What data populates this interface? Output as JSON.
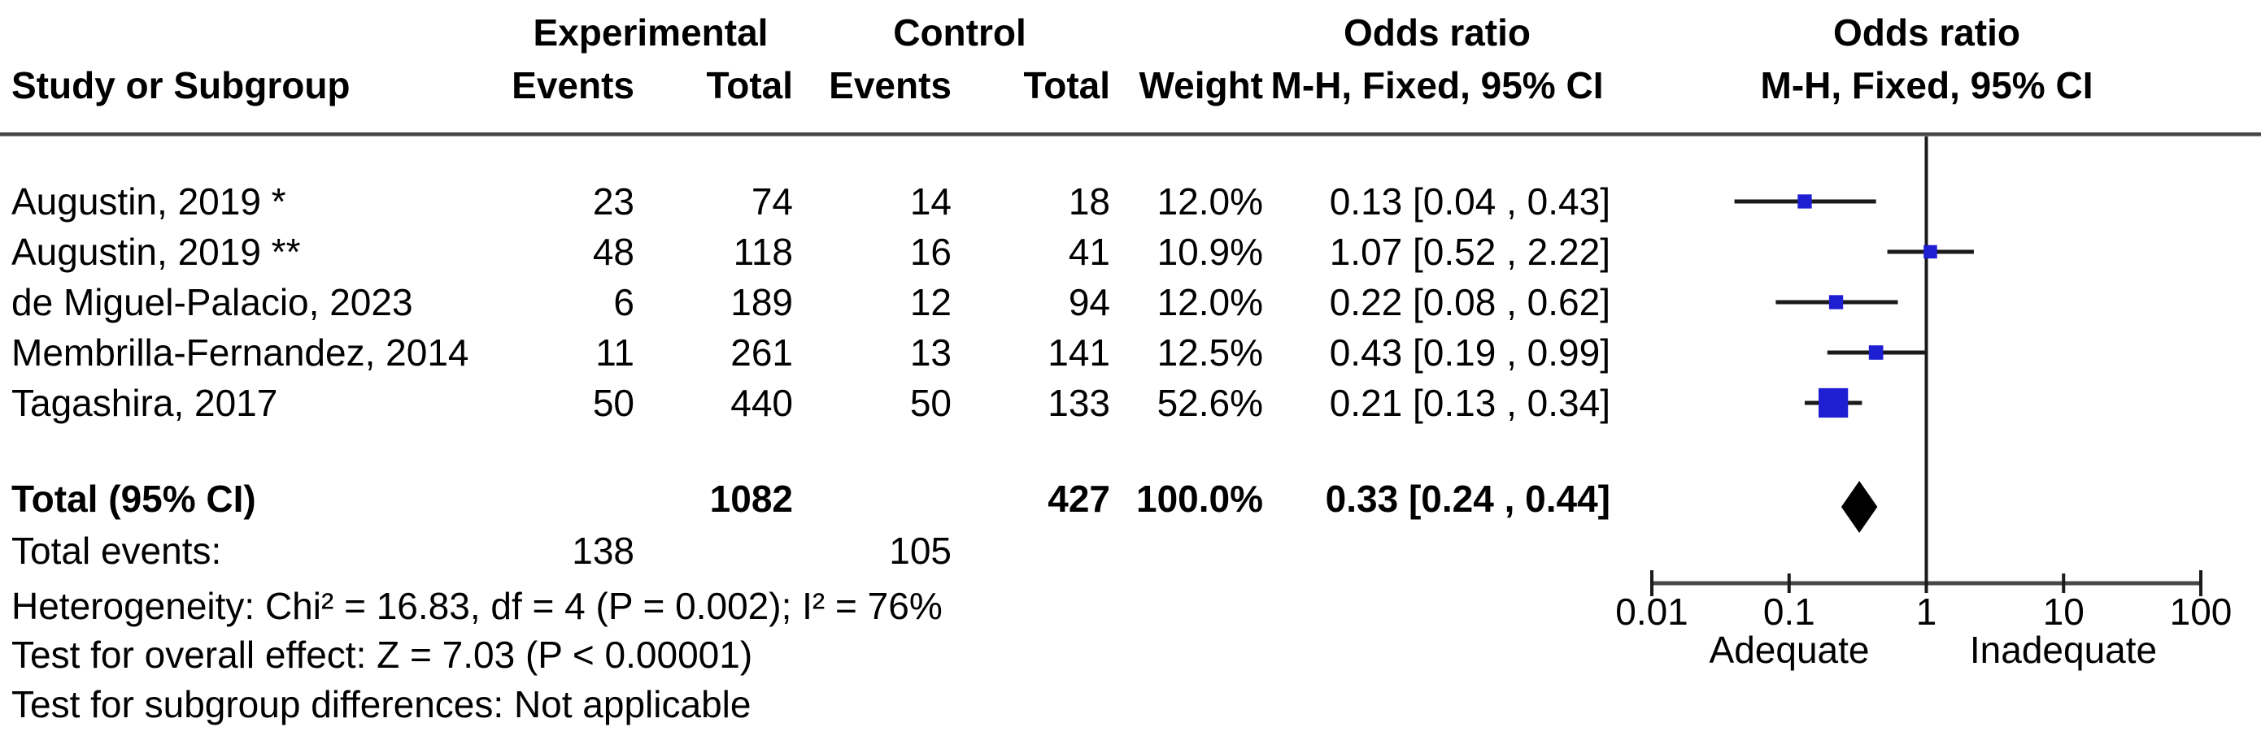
{
  "headers": {
    "group_experimental": "Experimental",
    "group_control": "Control",
    "or_col_title": "Odds ratio",
    "or_col_sub": "M-H, Fixed, 95% CI",
    "plot_title": "Odds ratio",
    "plot_sub": "M-H, Fixed, 95% CI",
    "study": "Study or Subgroup",
    "events_exp": "Events",
    "total_exp": "Total",
    "events_ctl": "Events",
    "total_ctl": "Total",
    "weight": "Weight"
  },
  "chart_data": {
    "type": "scatter",
    "subtype": "forest-plot-meta-analysis",
    "effect_measure": "Odds ratio, M-H, Fixed, 95% CI",
    "x_scale": "log10",
    "x_range": [
      0.01,
      100
    ],
    "x_ticks": [
      "0.01",
      "0.1",
      "1",
      "10",
      "100"
    ],
    "reference_value": 1,
    "axis_region_labels": {
      "left": "Adequate",
      "right": "Inadequate"
    },
    "colors": {
      "marker": "#1e1ed2",
      "summary": "#000000",
      "line": "#1a1a1a",
      "axis": "#474747"
    },
    "studies": [
      {
        "name": "Augustin, 2019 *",
        "exp_events": "23",
        "exp_total": "74",
        "ctl_events": "14",
        "ctl_total": "18",
        "weight": "12.0%",
        "weight_pct": 12.0,
        "or": 0.13,
        "ci_low": 0.04,
        "ci_high": 0.43,
        "or_ci_label": "0.13 [0.04 , 0.43]"
      },
      {
        "name": "Augustin, 2019 **",
        "exp_events": "48",
        "exp_total": "118",
        "ctl_events": "16",
        "ctl_total": "41",
        "weight": "10.9%",
        "weight_pct": 10.9,
        "or": 1.07,
        "ci_low": 0.52,
        "ci_high": 2.22,
        "or_ci_label": "1.07 [0.52 , 2.22]"
      },
      {
        "name": "de Miguel-Palacio, 2023",
        "exp_events": "6",
        "exp_total": "189",
        "ctl_events": "12",
        "ctl_total": "94",
        "weight": "12.0%",
        "weight_pct": 12.0,
        "or": 0.22,
        "ci_low": 0.08,
        "ci_high": 0.62,
        "or_ci_label": "0.22 [0.08 , 0.62]"
      },
      {
        "name": "Membrilla-Fernandez, 2014",
        "exp_events": "11",
        "exp_total": "261",
        "ctl_events": "13",
        "ctl_total": "141",
        "weight": "12.5%",
        "weight_pct": 12.5,
        "or": 0.43,
        "ci_low": 0.19,
        "ci_high": 0.99,
        "or_ci_label": "0.43 [0.19 , 0.99]"
      },
      {
        "name": "Tagashira, 2017",
        "exp_events": "50",
        "exp_total": "440",
        "ctl_events": "50",
        "ctl_total": "133",
        "weight": "52.6%",
        "weight_pct": 52.6,
        "or": 0.21,
        "ci_low": 0.13,
        "ci_high": 0.34,
        "or_ci_label": "0.21 [0.13 , 0.34]"
      }
    ],
    "total": {
      "label": "Total (95% CI)",
      "exp_total": "1082",
      "ctl_total": "427",
      "weight": "100.0%",
      "or": 0.33,
      "ci_low": 0.24,
      "ci_high": 0.44,
      "or_ci_label": "0.33 [0.24 , 0.44]"
    },
    "total_events": {
      "label": "Total events:",
      "experimental": "138",
      "control": "105"
    },
    "footnotes": {
      "heterogeneity": "Heterogeneity: Chi² = 16.83, df = 4 (P = 0.002); I² = 76%",
      "overall_effect": "Test for overall effect: Z = 7.03 (P < 0.00001)",
      "subgroup": "Test for subgroup differences: Not applicable"
    }
  }
}
